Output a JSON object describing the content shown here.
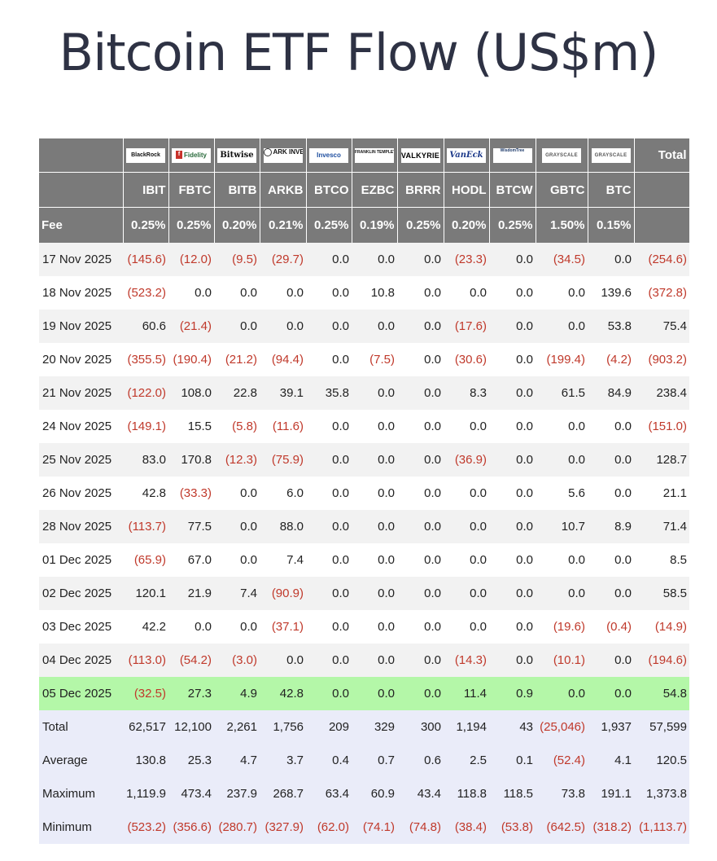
{
  "title": "Bitcoin ETF Flow (US$m)",
  "issuers": [
    {
      "logo": "BlackRock",
      "ticker": "IBIT",
      "fee": "0.25%"
    },
    {
      "logo": "Fidelity",
      "ticker": "FBTC",
      "fee": "0.25%"
    },
    {
      "logo": "Bitwise",
      "ticker": "BITB",
      "fee": "0.20%"
    },
    {
      "logo": "ARK INVEST",
      "ticker": "ARKB",
      "fee": "0.21%"
    },
    {
      "logo": "Invesco",
      "ticker": "BTCO",
      "fee": "0.25%"
    },
    {
      "logo": "FRANKLIN TEMPLETON",
      "ticker": "EZBC",
      "fee": "0.19%"
    },
    {
      "logo": "VALKYRIE",
      "ticker": "BRRR",
      "fee": "0.25%"
    },
    {
      "logo": "VanEck",
      "ticker": "HODL",
      "fee": "0.20%"
    },
    {
      "logo": "WisdomTree",
      "ticker": "BTCW",
      "fee": "0.25%"
    },
    {
      "logo": "GRAYSCALE",
      "ticker": "GBTC",
      "fee": "1.50%"
    },
    {
      "logo": "GRAYSCALE",
      "ticker": "BTC",
      "fee": "0.15%"
    }
  ],
  "header": {
    "total_label": "Total",
    "fee_label": "Fee"
  },
  "rows": [
    {
      "date": "17 Nov 2025",
      "values": [
        "(145.6)",
        "(12.0)",
        "(9.5)",
        "(29.7)",
        "0.0",
        "0.0",
        "0.0",
        "(23.3)",
        "0.0",
        "(34.5)",
        "0.0",
        "(254.6)"
      ]
    },
    {
      "date": "18 Nov 2025",
      "values": [
        "(523.2)",
        "0.0",
        "0.0",
        "0.0",
        "0.0",
        "10.8",
        "0.0",
        "0.0",
        "0.0",
        "0.0",
        "139.6",
        "(372.8)"
      ]
    },
    {
      "date": "19 Nov 2025",
      "values": [
        "60.6",
        "(21.4)",
        "0.0",
        "0.0",
        "0.0",
        "0.0",
        "0.0",
        "(17.6)",
        "0.0",
        "0.0",
        "53.8",
        "75.4"
      ]
    },
    {
      "date": "20 Nov 2025",
      "values": [
        "(355.5)",
        "(190.4)",
        "(21.2)",
        "(94.4)",
        "0.0",
        "(7.5)",
        "0.0",
        "(30.6)",
        "0.0",
        "(199.4)",
        "(4.2)",
        "(903.2)"
      ]
    },
    {
      "date": "21 Nov 2025",
      "values": [
        "(122.0)",
        "108.0",
        "22.8",
        "39.1",
        "35.8",
        "0.0",
        "0.0",
        "8.3",
        "0.0",
        "61.5",
        "84.9",
        "238.4"
      ]
    },
    {
      "date": "24 Nov 2025",
      "values": [
        "(149.1)",
        "15.5",
        "(5.8)",
        "(11.6)",
        "0.0",
        "0.0",
        "0.0",
        "0.0",
        "0.0",
        "0.0",
        "0.0",
        "(151.0)"
      ]
    },
    {
      "date": "25 Nov 2025",
      "values": [
        "83.0",
        "170.8",
        "(12.3)",
        "(75.9)",
        "0.0",
        "0.0",
        "0.0",
        "(36.9)",
        "0.0",
        "0.0",
        "0.0",
        "128.7"
      ]
    },
    {
      "date": "26 Nov 2025",
      "values": [
        "42.8",
        "(33.3)",
        "0.0",
        "6.0",
        "0.0",
        "0.0",
        "0.0",
        "0.0",
        "0.0",
        "5.6",
        "0.0",
        "21.1"
      ]
    },
    {
      "date": "28 Nov 2025",
      "values": [
        "(113.7)",
        "77.5",
        "0.0",
        "88.0",
        "0.0",
        "0.0",
        "0.0",
        "0.0",
        "0.0",
        "10.7",
        "8.9",
        "71.4"
      ]
    },
    {
      "date": "01 Dec 2025",
      "values": [
        "(65.9)",
        "67.0",
        "0.0",
        "7.4",
        "0.0",
        "0.0",
        "0.0",
        "0.0",
        "0.0",
        "0.0",
        "0.0",
        "8.5"
      ]
    },
    {
      "date": "02 Dec 2025",
      "values": [
        "120.1",
        "21.9",
        "7.4",
        "(90.9)",
        "0.0",
        "0.0",
        "0.0",
        "0.0",
        "0.0",
        "0.0",
        "0.0",
        "58.5"
      ]
    },
    {
      "date": "03 Dec 2025",
      "values": [
        "42.2",
        "0.0",
        "0.0",
        "(37.1)",
        "0.0",
        "0.0",
        "0.0",
        "0.0",
        "0.0",
        "(19.6)",
        "(0.4)",
        "(14.9)"
      ]
    },
    {
      "date": "04 Dec 2025",
      "values": [
        "(113.0)",
        "(54.2)",
        "(3.0)",
        "0.0",
        "0.0",
        "0.0",
        "0.0",
        "(14.3)",
        "0.0",
        "(10.1)",
        "0.0",
        "(194.6)"
      ]
    },
    {
      "date": "05 Dec 2025",
      "values": [
        "(32.5)",
        "27.3",
        "4.9",
        "42.8",
        "0.0",
        "0.0",
        "0.0",
        "11.4",
        "0.9",
        "0.0",
        "0.0",
        "54.8"
      ],
      "highlight": true
    }
  ],
  "summary": [
    {
      "label": "Total",
      "values": [
        "62,517",
        "12,100",
        "2,261",
        "1,756",
        "209",
        "329",
        "300",
        "1,194",
        "43",
        "(25,046)",
        "1,937",
        "57,599"
      ]
    },
    {
      "label": "Average",
      "values": [
        "130.8",
        "25.3",
        "4.7",
        "3.7",
        "0.4",
        "0.7",
        "0.6",
        "2.5",
        "0.1",
        "(52.4)",
        "4.1",
        "120.5"
      ]
    },
    {
      "label": "Maximum",
      "values": [
        "1,119.9",
        "473.4",
        "237.9",
        "268.7",
        "63.4",
        "60.9",
        "43.4",
        "118.8",
        "118.5",
        "73.8",
        "191.1",
        "1,373.8"
      ]
    },
    {
      "label": "Minimum",
      "values": [
        "(523.2)",
        "(356.6)",
        "(280.7)",
        "(327.9)",
        "(62.0)",
        "(74.1)",
        "(74.8)",
        "(38.4)",
        "(53.8)",
        "(642.5)",
        "(318.2)",
        "(1,113.7)"
      ]
    }
  ],
  "colors": {
    "header_bg": "#7a7a7a",
    "negative": "#c0392b",
    "highlight": "#b4f7a8",
    "summary_bg": "#eaecf9",
    "stripe": "#f2f2f2"
  }
}
